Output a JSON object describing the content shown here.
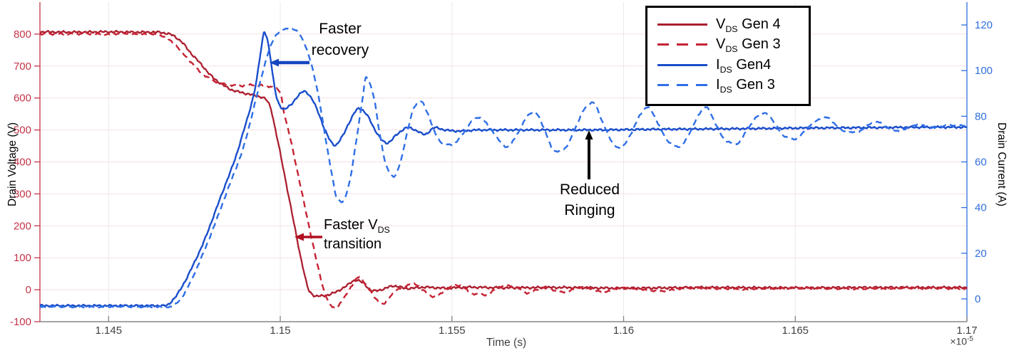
{
  "chart_data": {
    "type": "line",
    "title": "",
    "xlabel": "Time (s)",
    "x_multiplier": {
      "base": "×10",
      "exp": "-5"
    },
    "x_range": [
      1.143,
      1.17
    ],
    "x_ticks": [
      {
        "t": 1.145,
        "label": "1.145"
      },
      {
        "t": 1.15,
        "label": "1.15"
      },
      {
        "t": 1.155,
        "label": "1.155"
      },
      {
        "t": 1.16,
        "label": "1.16"
      },
      {
        "t": 1.165,
        "label": "1.165"
      },
      {
        "t": 1.17,
        "label": "1.17"
      }
    ],
    "left_axis": {
      "label": "Drain Voltage (V)",
      "color": "#c43549",
      "range": [
        -100,
        900
      ],
      "ticks": [
        -100,
        0,
        100,
        200,
        300,
        400,
        500,
        600,
        700,
        800
      ]
    },
    "right_axis": {
      "label": "Drain Current (A)",
      "color": "#2e6fdd",
      "range": [
        -10,
        130
      ],
      "ticks": [
        0,
        20,
        40,
        60,
        80,
        100,
        120
      ]
    },
    "grid": {
      "horizontal_color": "#f6dde2",
      "vertical_color": "#e9e9e9",
      "bottom_spine_color": "#858585"
    },
    "series": [
      {
        "name": "V_DS Gen 4",
        "axis": "left",
        "style": "solid",
        "color": "#ab1f30",
        "width": 2.3,
        "noise": 4,
        "points": [
          [
            1.143,
            807
          ],
          [
            1.144,
            806
          ],
          [
            1.145,
            807
          ],
          [
            1.1458,
            806
          ],
          [
            1.1464,
            806
          ],
          [
            1.1468,
            799
          ],
          [
            1.1471,
            778
          ],
          [
            1.1474,
            740
          ],
          [
            1.1477,
            705
          ],
          [
            1.148,
            668
          ],
          [
            1.1483,
            643
          ],
          [
            1.1486,
            625
          ],
          [
            1.149,
            614
          ],
          [
            1.1493,
            607
          ],
          [
            1.14955,
            598
          ],
          [
            1.1497,
            575
          ],
          [
            1.14985,
            505
          ],
          [
            1.15005,
            400
          ],
          [
            1.15025,
            290
          ],
          [
            1.15045,
            180
          ],
          [
            1.15065,
            75
          ],
          [
            1.15085,
            -5
          ],
          [
            1.15105,
            -20
          ],
          [
            1.15125,
            -19
          ],
          [
            1.1514,
            -16
          ],
          [
            1.1516,
            -8
          ],
          [
            1.1519,
            10
          ],
          [
            1.1522,
            30
          ],
          [
            1.1524,
            22
          ],
          [
            1.1527,
            -4
          ],
          [
            1.153,
            2
          ],
          [
            1.1533,
            12
          ],
          [
            1.1537,
            4
          ],
          [
            1.1542,
            8
          ],
          [
            1.1548,
            5
          ],
          [
            1.1555,
            8
          ],
          [
            1.1565,
            6
          ],
          [
            1.158,
            7
          ],
          [
            1.16,
            5
          ],
          [
            1.1625,
            7
          ],
          [
            1.165,
            6
          ],
          [
            1.1675,
            7
          ],
          [
            1.17,
            7
          ]
        ]
      },
      {
        "name": "V_DS Gen 3",
        "axis": "left",
        "style": "dashed",
        "color": "#c52334",
        "width": 2.4,
        "noise": 3.2,
        "points": [
          [
            1.143,
            800
          ],
          [
            1.144,
            801
          ],
          [
            1.145,
            800
          ],
          [
            1.1456,
            801
          ],
          [
            1.1462,
            800
          ],
          [
            1.1466,
            793
          ],
          [
            1.1469,
            770
          ],
          [
            1.1472,
            736
          ],
          [
            1.1475,
            700
          ],
          [
            1.1478,
            670
          ],
          [
            1.1481,
            652
          ],
          [
            1.1484,
            643
          ],
          [
            1.1488,
            638
          ],
          [
            1.1492,
            641
          ],
          [
            1.1495,
            639
          ],
          [
            1.1498,
            633
          ],
          [
            1.15,
            618
          ],
          [
            1.1501,
            560
          ],
          [
            1.1503,
            470
          ],
          [
            1.1505,
            370
          ],
          [
            1.1507,
            268
          ],
          [
            1.1509,
            168
          ],
          [
            1.1511,
            70
          ],
          [
            1.1513,
            -10
          ],
          [
            1.1515,
            -52
          ],
          [
            1.1516,
            -57
          ],
          [
            1.1518,
            -35
          ],
          [
            1.1521,
            15
          ],
          [
            1.1523,
            40
          ],
          [
            1.1525,
            15
          ],
          [
            1.1528,
            -30
          ],
          [
            1.153,
            -45
          ],
          [
            1.1532,
            -20
          ],
          [
            1.1536,
            10
          ],
          [
            1.1539,
            18
          ],
          [
            1.1542,
            -5
          ],
          [
            1.1545,
            -22
          ],
          [
            1.1549,
            5
          ],
          [
            1.1552,
            14
          ],
          [
            1.1556,
            -12
          ],
          [
            1.156,
            -16
          ],
          [
            1.1564,
            10
          ],
          [
            1.1568,
            12
          ],
          [
            1.1572,
            -10
          ],
          [
            1.1577,
            8
          ],
          [
            1.1582,
            -8
          ],
          [
            1.1588,
            8
          ],
          [
            1.1594,
            -6
          ],
          [
            1.16,
            6
          ],
          [
            1.161,
            -4
          ],
          [
            1.162,
            6
          ],
          [
            1.1635,
            2
          ],
          [
            1.165,
            5
          ],
          [
            1.167,
            3
          ],
          [
            1.1685,
            5
          ],
          [
            1.17,
            4
          ]
        ]
      },
      {
        "name": "I_DS Gen4",
        "axis": "right",
        "style": "solid",
        "color": "#1a4ecb",
        "width": 2.4,
        "noise": 0.5,
        "points": [
          [
            1.143,
            -3
          ],
          [
            1.1445,
            -3
          ],
          [
            1.1458,
            -3
          ],
          [
            1.14665,
            -3
          ],
          [
            1.1469,
            0
          ],
          [
            1.1472,
            7
          ],
          [
            1.1475,
            16
          ],
          [
            1.1478,
            26
          ],
          [
            1.1481,
            38
          ],
          [
            1.1484,
            50
          ],
          [
            1.1487,
            62
          ],
          [
            1.1489,
            72
          ],
          [
            1.1491,
            82
          ],
          [
            1.1493,
            95
          ],
          [
            1.1494,
            105
          ],
          [
            1.14948,
            113
          ],
          [
            1.14953,
            117
          ],
          [
            1.1496,
            115
          ],
          [
            1.1497,
            107
          ],
          [
            1.1498,
            96
          ],
          [
            1.1499,
            88
          ],
          [
            1.15,
            84.5
          ],
          [
            1.1501,
            83
          ],
          [
            1.1503,
            85
          ],
          [
            1.1505,
            88.5
          ],
          [
            1.1507,
            91
          ],
          [
            1.1509,
            88
          ],
          [
            1.1511,
            82
          ],
          [
            1.1513,
            74
          ],
          [
            1.1515,
            68.5
          ],
          [
            1.1516,
            67.3
          ],
          [
            1.1518,
            71
          ],
          [
            1.152,
            77
          ],
          [
            1.1523,
            83.5
          ],
          [
            1.1525,
            81
          ],
          [
            1.1528,
            73
          ],
          [
            1.153,
            69
          ],
          [
            1.1531,
            68.3
          ],
          [
            1.1534,
            72
          ],
          [
            1.1537,
            75
          ],
          [
            1.154,
            73.5
          ],
          [
            1.1542,
            72
          ],
          [
            1.1545,
            75
          ],
          [
            1.1548,
            74
          ],
          [
            1.1552,
            73.5
          ],
          [
            1.1558,
            74
          ],
          [
            1.1565,
            74
          ],
          [
            1.1575,
            74
          ],
          [
            1.159,
            74
          ],
          [
            1.161,
            74.3
          ],
          [
            1.163,
            74.5
          ],
          [
            1.165,
            74.8
          ],
          [
            1.167,
            75
          ],
          [
            1.169,
            75.2
          ],
          [
            1.17,
            75.2
          ]
        ]
      },
      {
        "name": "I_DS Gen 3",
        "axis": "right",
        "style": "dashed",
        "color": "#2f6fe6",
        "width": 2.4,
        "noise": 0.35,
        "points": [
          [
            1.143,
            -3.5
          ],
          [
            1.1445,
            -3.5
          ],
          [
            1.146,
            -3.5
          ],
          [
            1.1468,
            -3.5
          ],
          [
            1.1471,
            0
          ],
          [
            1.1474,
            8
          ],
          [
            1.1477,
            18
          ],
          [
            1.148,
            29
          ],
          [
            1.1483,
            41
          ],
          [
            1.1486,
            53
          ],
          [
            1.1489,
            65
          ],
          [
            1.1491,
            76
          ],
          [
            1.1493,
            88
          ],
          [
            1.1495,
            100
          ],
          [
            1.1497,
            110
          ],
          [
            1.1499,
            116
          ],
          [
            1.1501,
            118
          ],
          [
            1.1503,
            118.5
          ],
          [
            1.1505,
            117
          ],
          [
            1.1507,
            112
          ],
          [
            1.1509,
            103
          ],
          [
            1.1511,
            90
          ],
          [
            1.1513,
            72
          ],
          [
            1.1515,
            55
          ],
          [
            1.15165,
            44
          ],
          [
            1.1518,
            42.5
          ],
          [
            1.152,
            50
          ],
          [
            1.1522,
            68
          ],
          [
            1.1524,
            88
          ],
          [
            1.1525,
            97
          ],
          [
            1.1527,
            90
          ],
          [
            1.1529,
            72
          ],
          [
            1.1531,
            58
          ],
          [
            1.1533,
            53.5
          ],
          [
            1.1535,
            60
          ],
          [
            1.1537,
            73
          ],
          [
            1.1539,
            84
          ],
          [
            1.1541,
            86.5
          ],
          [
            1.1543,
            81
          ],
          [
            1.1545,
            73
          ],
          [
            1.1547,
            68.5
          ],
          [
            1.155,
            67.5
          ],
          [
            1.1553,
            72
          ],
          [
            1.1556,
            78
          ],
          [
            1.1558,
            79.5
          ],
          [
            1.1561,
            75
          ],
          [
            1.1564,
            69
          ],
          [
            1.1566,
            66.5
          ],
          [
            1.1569,
            72
          ],
          [
            1.1572,
            80
          ],
          [
            1.1574,
            82
          ],
          [
            1.1577,
            74
          ],
          [
            1.158,
            64.5
          ],
          [
            1.1583,
            66
          ],
          [
            1.1586,
            75
          ],
          [
            1.1589,
            84
          ],
          [
            1.1591,
            86
          ],
          [
            1.1594,
            77
          ],
          [
            1.1597,
            68
          ],
          [
            1.1599,
            66
          ],
          [
            1.1602,
            72
          ],
          [
            1.1605,
            81
          ],
          [
            1.1607,
            84
          ],
          [
            1.161,
            77
          ],
          [
            1.1613,
            69
          ],
          [
            1.1616,
            66.5
          ],
          [
            1.1619,
            72
          ],
          [
            1.1622,
            81
          ],
          [
            1.1624,
            84
          ],
          [
            1.1627,
            76
          ],
          [
            1.163,
            69
          ],
          [
            1.1633,
            68
          ],
          [
            1.1636,
            74
          ],
          [
            1.1639,
            80
          ],
          [
            1.1641,
            81.5
          ],
          [
            1.1644,
            77
          ],
          [
            1.1647,
            71
          ],
          [
            1.165,
            70
          ],
          [
            1.1653,
            74
          ],
          [
            1.1656,
            78
          ],
          [
            1.1659,
            79.5
          ],
          [
            1.1662,
            76
          ],
          [
            1.1665,
            73
          ],
          [
            1.1668,
            73
          ],
          [
            1.1671,
            76
          ],
          [
            1.1674,
            77.5
          ],
          [
            1.1677,
            75
          ],
          [
            1.168,
            73.5
          ],
          [
            1.1683,
            75
          ],
          [
            1.1686,
            76.5
          ],
          [
            1.1689,
            75
          ],
          [
            1.1692,
            75.5
          ],
          [
            1.1695,
            76
          ],
          [
            1.17,
            75.8
          ]
        ]
      }
    ],
    "legend": {
      "items": [
        {
          "main": "V",
          "sub": "DS",
          "rest": " Gen 4",
          "style": "solid",
          "color": "#ab1f30"
        },
        {
          "main": "V",
          "sub": "DS",
          "rest": " Gen 3",
          "style": "dashed",
          "color": "#c52334"
        },
        {
          "main": "I",
          "sub": "DS",
          "rest": " Gen4",
          "style": "solid",
          "color": "#1a4ecb"
        },
        {
          "main": "I",
          "sub": "DS",
          "rest": " Gen 3",
          "style": "dashed",
          "color": "#2f6fe6"
        }
      ]
    },
    "annotations": {
      "faster_recovery": {
        "lines": [
          "Faster",
          "recovery"
        ],
        "arrow": {
          "from": [
            434,
            88
          ],
          "to": [
            378,
            88
          ],
          "color": "#1545c0",
          "width": 4.5
        }
      },
      "faster_vds": {
        "line1_main": "Faster V",
        "line1_sub": "DS",
        "line2": "transition",
        "arrow": {
          "from": [
            452,
            333
          ],
          "to": [
            413,
            333
          ],
          "color": "#b01020",
          "width": 3.5
        }
      },
      "reduced_ringing": {
        "lines": [
          "Reduced",
          "Ringing"
        ],
        "arrow": {
          "from": [
            826,
            252
          ],
          "to": [
            826,
            183
          ],
          "color": "#000000",
          "width": 4
        }
      }
    }
  }
}
